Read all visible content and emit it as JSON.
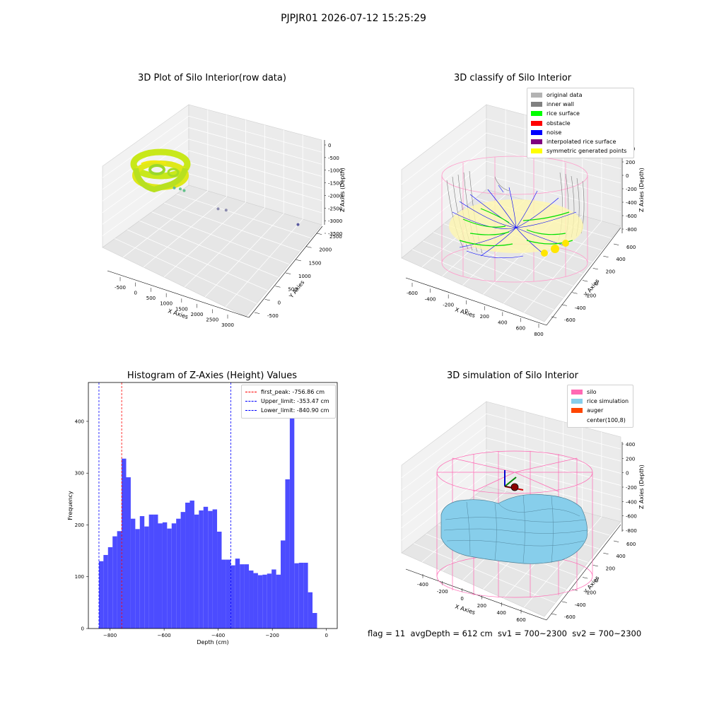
{
  "suptitle": "PJPJR01 2026-07-12 15:25:29",
  "status_text": "flag = 11  avgDepth = 612 cm  sv1 = 700~2300  sv2 = 700~2300",
  "chart_data": [
    {
      "type": "scatter3d",
      "title": "3D Plot of Silo Interior(row data)",
      "xlabel": "X Axies",
      "ylabel": "Y Axies",
      "zlabel": "Z Axies (Depth)",
      "xticks": [
        "-500",
        "0",
        "500",
        "1000",
        "1500",
        "2000",
        "2500",
        "3000"
      ],
      "yticks": [
        "-500",
        "0",
        "500",
        "1000",
        "1500",
        "2000",
        "2500"
      ],
      "zticks": [
        "0",
        "-500",
        "-1000",
        "-1500",
        "-2000",
        "-2500",
        "-3000",
        "-3500"
      ],
      "outliers": [
        {
          "x": 700,
          "y": 300,
          "z": -1900
        },
        {
          "x": 800,
          "y": 350,
          "z": -1950
        },
        {
          "x": 900,
          "y": 350,
          "z": -2000
        },
        {
          "x": 1500,
          "y": 600,
          "z": -2800
        },
        {
          "x": 1650,
          "y": 650,
          "z": -2850
        },
        {
          "x": 2900,
          "y": 1200,
          "z": -3500
        }
      ]
    },
    {
      "type": "scatter3d",
      "title": "3D classify of Silo Interior",
      "xlabel": "X Axies",
      "ylabel": "Y Axies",
      "zlabel": "Z Axies (Depth)",
      "xticks": [
        "-600",
        "-400",
        "-200",
        "0",
        "200",
        "400",
        "600",
        "800"
      ],
      "yticks": [
        "-600",
        "-400",
        "-200",
        "0",
        "200",
        "400",
        "600"
      ],
      "zticks": [
        "200",
        "0",
        "-200",
        "-400",
        "-600",
        "-800"
      ],
      "zticks_top": "400",
      "legend": [
        {
          "label": "original data",
          "color": "#b3b3b3"
        },
        {
          "label": "inner wall",
          "color": "#808080"
        },
        {
          "label": "rice surface",
          "color": "#00ff00"
        },
        {
          "label": "obstacle",
          "color": "#ff0000"
        },
        {
          "label": "noise",
          "color": "#0000ff"
        },
        {
          "label": "interpolated rice surface",
          "color": "#800080"
        },
        {
          "label": "symmetric generated points",
          "color": "#ffff00"
        }
      ]
    },
    {
      "type": "bar",
      "title": "Histogram of Z-Axies (Height) Values",
      "xlabel": "Depth (cm)",
      "ylabel": "Frequency",
      "xlim": [
        -880,
        40
      ],
      "ylim": [
        0,
        475
      ],
      "xticks": [
        -800,
        -600,
        -400,
        -200,
        0
      ],
      "yticks": [
        0,
        100,
        200,
        300,
        400
      ],
      "bin_start": -841,
      "bin_width": 16.8,
      "values": [
        130,
        142,
        157,
        178,
        188,
        328,
        292,
        212,
        192,
        217,
        197,
        220,
        220,
        203,
        205,
        193,
        203,
        212,
        225,
        243,
        247,
        220,
        228,
        235,
        227,
        230,
        187,
        133,
        133,
        122,
        135,
        124,
        124,
        112,
        107,
        103,
        104,
        106,
        114,
        104,
        170,
        288,
        450,
        126,
        127,
        127,
        70,
        30
      ],
      "bar_color": "#4c4cff",
      "vlines": [
        {
          "label": "first_peak: -756.86 cm",
          "x": -756.86,
          "color": "#ff0000"
        },
        {
          "label": "Upper_limit: -353.47 cm",
          "x": -353.47,
          "color": "#0000ff"
        },
        {
          "label": "Lower_limit: -840.90 cm",
          "x": -840.9,
          "color": "#0000ff"
        }
      ]
    },
    {
      "type": "surface3d",
      "title": "3D simulation of Silo Interior",
      "xlabel": "X Axies",
      "ylabel": "Y Axies",
      "zlabel": "Z Axies (Depth)",
      "xticks": [
        "-400",
        "-200",
        "0",
        "200",
        "400",
        "600"
      ],
      "yticks": [
        "-600",
        "-400",
        "-200",
        "0",
        "200",
        "400",
        "600"
      ],
      "zticks": [
        "400",
        "200",
        "0",
        "-200",
        "-400",
        "-600",
        "-800"
      ],
      "legend": [
        {
          "label": "silo",
          "color": "#ff69b4"
        },
        {
          "label": "rice simulation",
          "color": "#87ceeb"
        },
        {
          "label": "auger",
          "color": "#ff4500"
        },
        {
          "label": "center(100,8)",
          "color": ""
        }
      ]
    }
  ]
}
